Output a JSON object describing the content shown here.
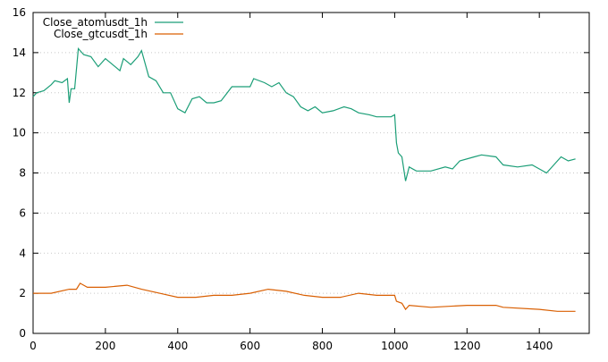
{
  "chart_data": {
    "type": "line",
    "title": "",
    "xlabel": "",
    "ylabel": "",
    "xlim": [
      0,
      1538
    ],
    "ylim": [
      0,
      16
    ],
    "xticks": [
      0,
      200,
      400,
      600,
      800,
      1000,
      1200,
      1400
    ],
    "yticks": [
      0,
      2,
      4,
      6,
      8,
      10,
      12,
      14,
      16
    ],
    "grid": "horizontal dotted",
    "legend_position": "top-left",
    "series": [
      {
        "name": "Close_atomusdt_1h",
        "color": "#1b9e77",
        "x": [
          0,
          10,
          30,
          50,
          60,
          80,
          95,
          100,
          105,
          115,
          125,
          140,
          160,
          180,
          200,
          220,
          240,
          250,
          270,
          290,
          300,
          320,
          340,
          360,
          380,
          400,
          420,
          440,
          460,
          480,
          500,
          520,
          550,
          580,
          600,
          610,
          640,
          660,
          680,
          700,
          720,
          740,
          760,
          780,
          800,
          830,
          860,
          880,
          900,
          930,
          950,
          990,
          1000,
          1005,
          1010,
          1020,
          1030,
          1040,
          1060,
          1100,
          1140,
          1160,
          1180,
          1220,
          1240,
          1280,
          1300,
          1340,
          1380,
          1400,
          1420,
          1440,
          1460,
          1480,
          1500
        ],
        "y": [
          11.8,
          12.0,
          12.1,
          12.4,
          12.6,
          12.5,
          12.7,
          11.5,
          12.2,
          12.2,
          14.2,
          13.9,
          13.8,
          13.3,
          13.7,
          13.4,
          13.1,
          13.7,
          13.4,
          13.8,
          14.1,
          12.8,
          12.6,
          12.0,
          12.0,
          11.2,
          11.0,
          11.7,
          11.8,
          11.5,
          11.5,
          11.6,
          12.3,
          12.3,
          12.3,
          12.7,
          12.5,
          12.3,
          12.5,
          12.0,
          11.8,
          11.3,
          11.1,
          11.3,
          11.0,
          11.1,
          11.3,
          11.2,
          11.0,
          10.9,
          10.8,
          10.8,
          10.9,
          9.5,
          9.0,
          8.8,
          7.6,
          8.3,
          8.1,
          8.1,
          8.3,
          8.2,
          8.6,
          8.8,
          8.9,
          8.8,
          8.4,
          8.3,
          8.4,
          8.2,
          8.0,
          8.4,
          8.8,
          8.6,
          8.7
        ]
      },
      {
        "name": "Close_gtcusdt_1h",
        "color": "#d95f02",
        "x": [
          0,
          50,
          100,
          120,
          130,
          150,
          200,
          260,
          300,
          350,
          400,
          450,
          500,
          550,
          600,
          650,
          700,
          750,
          800,
          850,
          900,
          950,
          1000,
          1005,
          1020,
          1030,
          1040,
          1100,
          1200,
          1280,
          1300,
          1400,
          1450,
          1500
        ],
        "y": [
          2.0,
          2.0,
          2.2,
          2.2,
          2.5,
          2.3,
          2.3,
          2.4,
          2.2,
          2.0,
          1.8,
          1.8,
          1.9,
          1.9,
          2.0,
          2.2,
          2.1,
          1.9,
          1.8,
          1.8,
          2.0,
          1.9,
          1.9,
          1.6,
          1.5,
          1.2,
          1.4,
          1.3,
          1.4,
          1.4,
          1.3,
          1.2,
          1.1,
          1.1
        ]
      }
    ]
  }
}
